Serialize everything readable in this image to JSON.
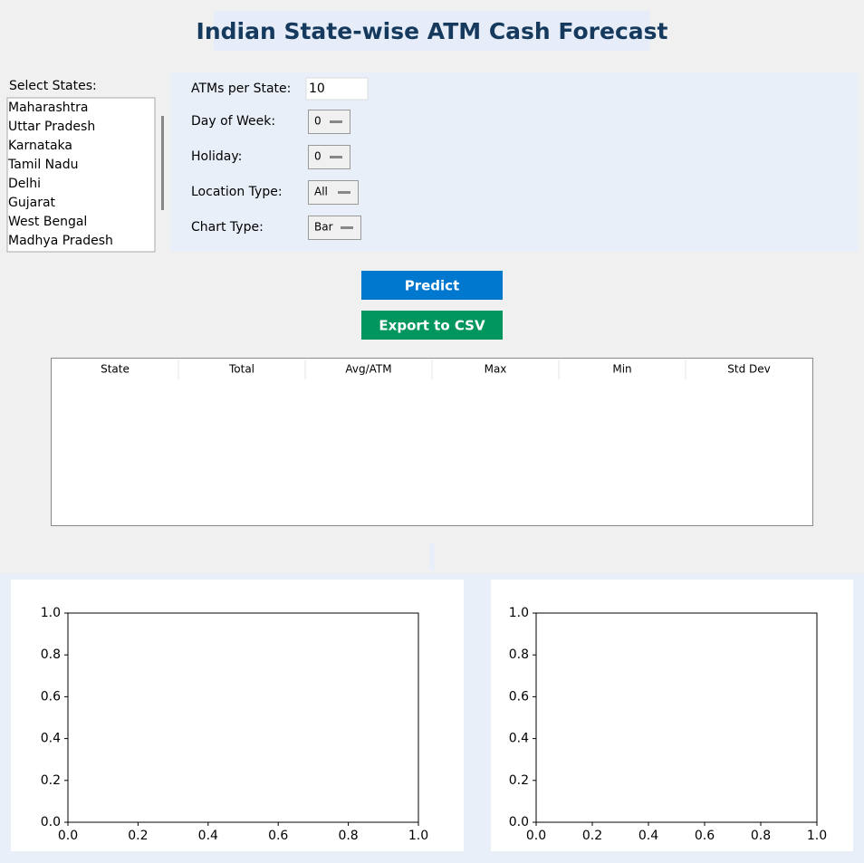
{
  "header": {
    "title": "Indian State-wise ATM Cash Forecast"
  },
  "states": {
    "label": "Select States:",
    "items": [
      "Maharashtra",
      "Uttar Pradesh",
      "Karnataka",
      "Tamil Nadu",
      "Delhi",
      "Gujarat",
      "West Bengal",
      "Madhya Pradesh"
    ]
  },
  "controls": [
    {
      "label": "ATMs per State:",
      "value": "10"
    },
    {
      "label": "Day of Week:",
      "value": "0"
    },
    {
      "label": "Holiday:",
      "value": "0"
    },
    {
      "label": "Location Type:",
      "value": "All"
    },
    {
      "label": "Chart Type:",
      "value": "Bar"
    }
  ],
  "buttons": [
    {
      "label": "Predict",
      "color": "#0078d0"
    },
    {
      "label": "Export to CSV",
      "color": "#00965e"
    }
  ],
  "table": {
    "columns": [
      "State",
      "Total",
      "Avg/ATM",
      "Max",
      "Min",
      "Std Dev"
    ]
  },
  "plots": [
    {
      "xlim": [
        0,
        1
      ],
      "ylim": [
        0,
        1
      ],
      "xticks": [
        {
          "value": 0,
          "label": "0.0"
        },
        {
          "value": 0.2,
          "label": "0.2"
        },
        {
          "value": 0.4,
          "label": "0.4"
        },
        {
          "value": 0.6,
          "label": "0.6"
        },
        {
          "value": 0.8,
          "label": "0.8"
        },
        {
          "value": 1,
          "label": "1.0"
        }
      ],
      "yticks": [
        {
          "value": 0,
          "label": "0.0"
        },
        {
          "value": 0.2,
          "label": "0.2"
        },
        {
          "value": 0.4,
          "label": "0.4"
        },
        {
          "value": 0.6,
          "label": "0.6"
        },
        {
          "value": 0.8,
          "label": "0.8"
        },
        {
          "value": 1,
          "label": "1.0"
        }
      ]
    },
    {
      "xlim": [
        0,
        1
      ],
      "ylim": [
        0,
        1
      ],
      "xticks": [
        {
          "value": 0,
          "label": "0.0"
        },
        {
          "value": 0.2,
          "label": "0.2"
        },
        {
          "value": 0.4,
          "label": "0.4"
        },
        {
          "value": 0.6,
          "label": "0.6"
        },
        {
          "value": 0.8,
          "label": "0.8"
        },
        {
          "value": 1,
          "label": "1.0"
        }
      ],
      "yticks": [
        {
          "value": 0,
          "label": "0.0"
        },
        {
          "value": 0.2,
          "label": "0.2"
        },
        {
          "value": 0.4,
          "label": "0.4"
        },
        {
          "value": 0.6,
          "label": "0.6"
        },
        {
          "value": 0.8,
          "label": "0.8"
        },
        {
          "value": 1,
          "label": "1.0"
        }
      ]
    }
  ]
}
